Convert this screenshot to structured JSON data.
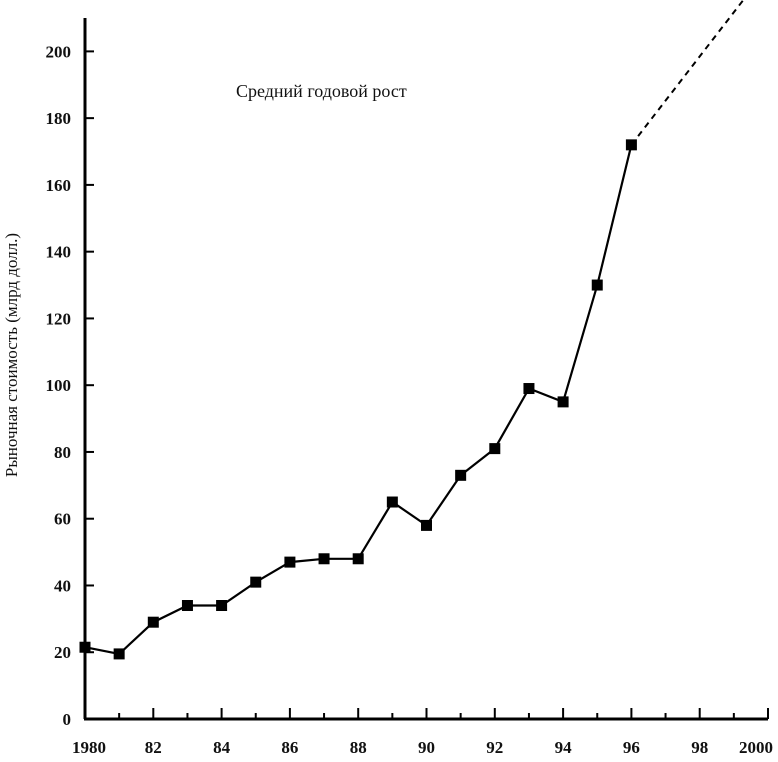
{
  "chart_data": {
    "type": "line",
    "title": "",
    "annotation": "Средний годовой рост",
    "xlabel": "",
    "ylabel": "Рыночная стоимость (млрд долл.)",
    "xlim": [
      1980,
      2000
    ],
    "ylim": [
      0,
      210
    ],
    "x_ticks": [
      1980,
      1982,
      1984,
      1986,
      1988,
      1990,
      1992,
      1994,
      1996,
      1998,
      2000
    ],
    "x_tick_labels": [
      "1980",
      "82",
      "84",
      "86",
      "88",
      "90",
      "92",
      "94",
      "96",
      "98",
      "2000"
    ],
    "y_ticks": [
      0,
      20,
      40,
      60,
      80,
      100,
      120,
      140,
      160,
      180,
      200
    ],
    "y_tick_labels": [
      "0",
      "20",
      "40",
      "60",
      "80",
      "100",
      "120",
      "140",
      "160",
      "180",
      "200"
    ],
    "grid": false,
    "series": [
      {
        "x": [
          1980,
          1981,
          1982,
          1983,
          1984,
          1985,
          1986,
          1987,
          1988,
          1989,
          1990,
          1991,
          1992,
          1993,
          1994,
          1995,
          1996
        ],
        "values": [
          21.5,
          19.5,
          29,
          34,
          34,
          41,
          47,
          48,
          48,
          65,
          58,
          73,
          81,
          99,
          95,
          130,
          172
        ],
        "marker": "square",
        "color": "#000000"
      }
    ],
    "projection": {
      "style": "dashed",
      "x": [
        1996,
        1999.4
      ],
      "values": [
        172,
        217
      ]
    }
  }
}
